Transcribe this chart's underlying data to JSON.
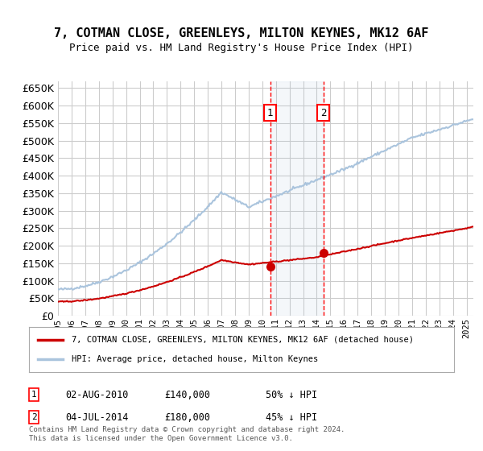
{
  "title": "7, COTMAN CLOSE, GREENLEYS, MILTON KEYNES, MK12 6AF",
  "subtitle": "Price paid vs. HM Land Registry's House Price Index (HPI)",
  "legend_line1": "7, COTMAN CLOSE, GREENLEYS, MILTON KEYNES, MK12 6AF (detached house)",
  "legend_line2": "HPI: Average price, detached house, Milton Keynes",
  "annotation1": {
    "num": "1",
    "date": "02-AUG-2010",
    "price": "£140,000",
    "pct": "50% ↓ HPI",
    "x_year": 2010.58
  },
  "annotation2": {
    "num": "2",
    "date": "04-JUL-2014",
    "price": "£180,000",
    "pct": "45% ↓ HPI",
    "x_year": 2014.5
  },
  "footer": "Contains HM Land Registry data © Crown copyright and database right 2024.\nThis data is licensed under the Open Government Licence v3.0.",
  "hpi_color": "#aac4dd",
  "price_color": "#cc0000",
  "background_color": "#ffffff",
  "grid_color": "#cccccc",
  "ylim": [
    0,
    670000
  ],
  "xlim_start": 1995,
  "xlim_end": 2025.5
}
